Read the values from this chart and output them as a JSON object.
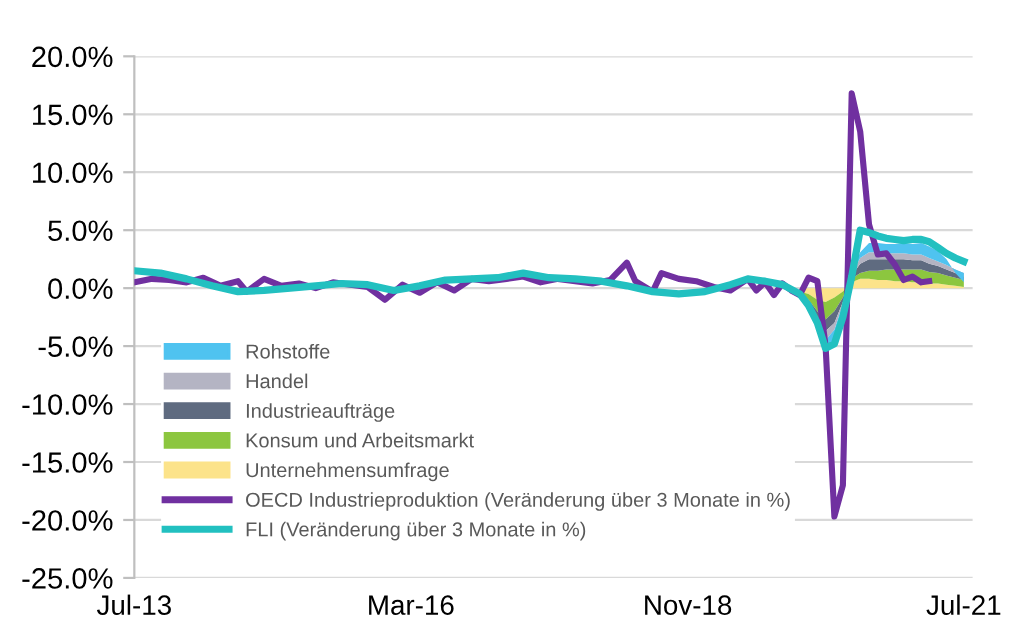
{
  "chart_data": {
    "type": "area",
    "xlim": [
      "2013-07",
      "2021-08"
    ],
    "xticks": [
      {
        "value": "2013-07",
        "label": "Jul-13"
      },
      {
        "value": "2016-03",
        "label": "Mar-16"
      },
      {
        "value": "2018-11",
        "label": "Nov-18"
      },
      {
        "value": "2021-07",
        "label": "Jul-21"
      }
    ],
    "ylim": [
      -25,
      20
    ],
    "yticks": [
      {
        "value": -25,
        "label": "-25.0%"
      },
      {
        "value": -20,
        "label": "-20.0%"
      },
      {
        "value": -15,
        "label": "-15.0%"
      },
      {
        "value": -10,
        "label": "-10.0%"
      },
      {
        "value": -5,
        "label": "-5.0%"
      },
      {
        "value": 0,
        "label": "0.0%"
      },
      {
        "value": 5,
        "label": "5.0%"
      },
      {
        "value": 10,
        "label": "10.0%"
      },
      {
        "value": 15,
        "label": "15.0%"
      },
      {
        "value": 20,
        "label": "20.0%"
      }
    ],
    "grid": "y",
    "legend": "bottom left",
    "stacked": true,
    "series": [
      {
        "name": "Unternehmensumfrage",
        "color": "#fce38a",
        "x": [
          "2019-12",
          "2020-01",
          "2020-02",
          "2020-03",
          "2020-04",
          "2020-05",
          "2020-06",
          "2020-07",
          "2020-08",
          "2020-09",
          "2020-10",
          "2020-11",
          "2020-12",
          "2021-01",
          "2021-02",
          "2021-03",
          "2021-04",
          "2021-05",
          "2021-06",
          "2021-07"
        ],
        "values": [
          -0.3,
          -0.5,
          -1.0,
          -1.2,
          -0.8,
          -0.3,
          0.5,
          0.8,
          0.8,
          0.7,
          0.7,
          0.6,
          0.6,
          0.5,
          0.5,
          0.4,
          0.4,
          0.3,
          0.2,
          0.1
        ]
      },
      {
        "name": "Konsum und Arbeitsmarkt",
        "color": "#8cc63f",
        "x": [
          "2019-12",
          "2020-01",
          "2020-02",
          "2020-03",
          "2020-04",
          "2020-05",
          "2020-06",
          "2020-07",
          "2020-08",
          "2020-09",
          "2020-10",
          "2020-11",
          "2020-12",
          "2021-01",
          "2021-02",
          "2021-03",
          "2021-04",
          "2021-05",
          "2021-06",
          "2021-07"
        ],
        "values": [
          -0.2,
          -0.5,
          -1.0,
          -1.5,
          -1.2,
          -0.5,
          0.3,
          0.5,
          0.7,
          0.8,
          0.9,
          1.0,
          1.0,
          1.1,
          1.1,
          1.0,
          0.9,
          0.8,
          0.7,
          0.6
        ]
      },
      {
        "name": "Industrieaufträge",
        "color": "#5f6b80",
        "x": [
          "2019-12",
          "2020-01",
          "2020-02",
          "2020-03",
          "2020-04",
          "2020-05",
          "2020-06",
          "2020-07",
          "2020-08",
          "2020-09",
          "2020-10",
          "2020-11",
          "2020-12",
          "2021-01",
          "2021-02",
          "2021-03",
          "2021-04",
          "2021-05",
          "2021-06",
          "2021-07"
        ],
        "values": [
          -0.1,
          -0.3,
          -0.6,
          -1.0,
          -1.0,
          -0.4,
          0.3,
          0.8,
          1.0,
          1.0,
          0.9,
          0.9,
          0.9,
          0.8,
          0.8,
          0.7,
          0.6,
          0.5,
          0.4,
          0.3
        ]
      },
      {
        "name": "Handel",
        "color": "#b4b4c3",
        "x": [
          "2019-12",
          "2020-01",
          "2020-02",
          "2020-03",
          "2020-04",
          "2020-05",
          "2020-06",
          "2020-07",
          "2020-08",
          "2020-09",
          "2020-10",
          "2020-11",
          "2020-12",
          "2021-01",
          "2021-02",
          "2021-03",
          "2021-04",
          "2021-05",
          "2021-06",
          "2021-07"
        ],
        "values": [
          -0.1,
          -0.2,
          -0.5,
          -0.8,
          -0.6,
          -0.2,
          0.2,
          0.5,
          0.6,
          0.6,
          0.5,
          0.5,
          0.5,
          0.5,
          0.5,
          0.5,
          0.4,
          0.4,
          0.3,
          0.3
        ]
      },
      {
        "name": "Rohstoffe",
        "color": "#4fc3f0",
        "x": [
          "2019-12",
          "2020-01",
          "2020-02",
          "2020-03",
          "2020-04",
          "2020-05",
          "2020-06",
          "2020-07",
          "2020-08",
          "2020-09",
          "2020-10",
          "2020-11",
          "2020-12",
          "2021-01",
          "2021-02",
          "2021-03",
          "2021-04",
          "2021-05",
          "2021-06",
          "2021-07"
        ],
        "values": [
          -0.1,
          -0.1,
          -0.4,
          -0.8,
          -0.8,
          -0.3,
          0.1,
          0.5,
          0.8,
          0.8,
          0.8,
          0.8,
          0.9,
          0.9,
          1.0,
          1.0,
          0.9,
          0.5,
          -0.3,
          -0.8
        ]
      },
      {
        "name": "OECD Industrieproduktion (Veränderung über 3 Monate in %)",
        "type": "line",
        "color": "#7030a0",
        "x": [
          "2013-07",
          "2013-09",
          "2013-11",
          "2014-01",
          "2014-03",
          "2014-05",
          "2014-07",
          "2014-08",
          "2014-10",
          "2014-12",
          "2015-02",
          "2015-04",
          "2015-06",
          "2015-08",
          "2015-10",
          "2015-12",
          "2016-02",
          "2016-04",
          "2016-06",
          "2016-08",
          "2016-10",
          "2016-12",
          "2017-02",
          "2017-04",
          "2017-06",
          "2017-08",
          "2017-10",
          "2017-12",
          "2018-02",
          "2018-04",
          "2018-05",
          "2018-07",
          "2018-08",
          "2018-10",
          "2018-12",
          "2019-02",
          "2019-04",
          "2019-06",
          "2019-07",
          "2019-08",
          "2019-09",
          "2019-10",
          "2019-11",
          "2019-12",
          "2020-01",
          "2020-02",
          "2020-03",
          "2020-04",
          "2020-05",
          "2020-06",
          "2020-07",
          "2020-08",
          "2020-09",
          "2020-10",
          "2020-11",
          "2020-12",
          "2021-01",
          "2021-02",
          "2021-03"
        ],
        "values": [
          0.5,
          0.8,
          0.7,
          0.5,
          0.9,
          0.2,
          0.6,
          -0.3,
          0.8,
          0.2,
          0.4,
          0.0,
          0.5,
          0.3,
          0.1,
          -1.0,
          0.3,
          -0.4,
          0.5,
          -0.2,
          0.8,
          0.6,
          0.8,
          1.0,
          0.5,
          0.8,
          0.6,
          0.4,
          0.7,
          2.2,
          0.6,
          -0.3,
          1.3,
          0.8,
          0.6,
          0.1,
          -0.2,
          0.8,
          -0.2,
          0.5,
          -0.6,
          0.4,
          -0.2,
          -0.6,
          0.9,
          0.6,
          -5.0,
          -19.7,
          -17.0,
          16.8,
          13.5,
          5.5,
          2.9,
          3.0,
          2.0,
          0.7,
          1.0,
          0.5,
          0.6
        ]
      },
      {
        "name": "FLI (Veränderung über 3 Monate in %)",
        "type": "line",
        "color": "#22c0c0",
        "x": [
          "2013-07",
          "2013-10",
          "2014-01",
          "2014-04",
          "2014-07",
          "2014-10",
          "2015-01",
          "2015-04",
          "2015-07",
          "2015-10",
          "2016-01",
          "2016-04",
          "2016-07",
          "2016-10",
          "2017-01",
          "2017-04",
          "2017-07",
          "2017-10",
          "2018-01",
          "2018-04",
          "2018-07",
          "2018-10",
          "2019-01",
          "2019-04",
          "2019-06",
          "2019-08",
          "2019-10",
          "2019-12",
          "2020-01",
          "2020-02",
          "2020-03",
          "2020-04",
          "2020-05",
          "2020-06",
          "2020-07",
          "2020-08",
          "2020-09",
          "2020-10",
          "2020-11",
          "2020-12",
          "2021-01",
          "2021-02",
          "2021-03",
          "2021-04",
          "2021-05",
          "2021-06",
          "2021-07"
        ],
        "values": [
          1.5,
          1.3,
          0.8,
          0.2,
          -0.3,
          -0.2,
          0.0,
          0.2,
          0.4,
          0.3,
          -0.2,
          0.2,
          0.7,
          0.8,
          0.9,
          1.3,
          0.9,
          0.8,
          0.6,
          0.2,
          -0.3,
          -0.5,
          -0.3,
          0.3,
          0.8,
          0.6,
          0.3,
          -0.5,
          -1.5,
          -3.0,
          -5.2,
          -4.8,
          -2.5,
          1.0,
          5.0,
          4.8,
          4.5,
          4.3,
          4.2,
          4.1,
          4.2,
          4.2,
          4.0,
          3.5,
          3.0,
          2.6,
          2.3
        ]
      }
    ]
  }
}
